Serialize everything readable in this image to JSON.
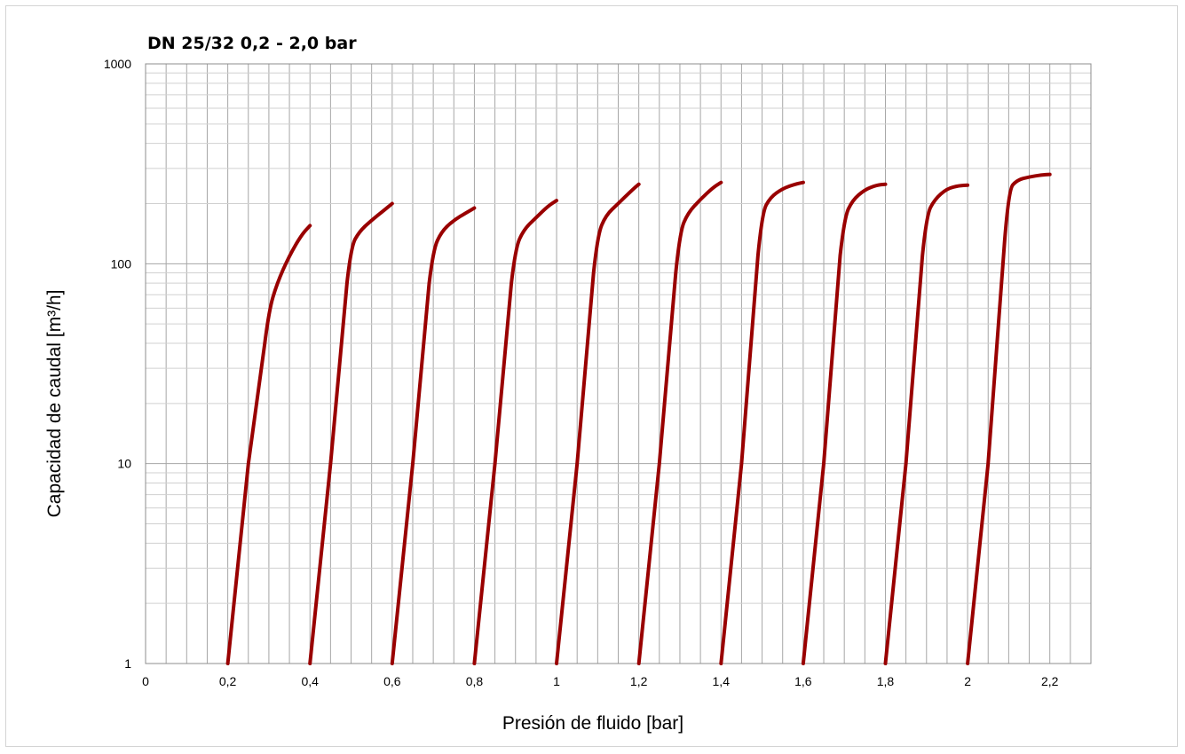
{
  "chart_data": {
    "type": "line",
    "title": "DN 25/32  0,2 - 2,0 bar",
    "xlabel": "Presión de fluido  [bar]",
    "ylabel": "Capacidad de caudal  [m³/h]",
    "xlim": [
      0,
      2.3
    ],
    "ylim": [
      1,
      1000
    ],
    "yscale": "log",
    "grid": true,
    "legend": "none",
    "series_color": "#990000",
    "x_ticks": [
      {
        "value": 0,
        "label": "0"
      },
      {
        "value": 0.2,
        "label": "0,2"
      },
      {
        "value": 0.4,
        "label": "0,4"
      },
      {
        "value": 0.6,
        "label": "0,6"
      },
      {
        "value": 0.8,
        "label": "0,8"
      },
      {
        "value": 1.0,
        "label": "1"
      },
      {
        "value": 1.2,
        "label": "1,2"
      },
      {
        "value": 1.4,
        "label": "1,4"
      },
      {
        "value": 1.6,
        "label": "1,6"
      },
      {
        "value": 1.8,
        "label": "1,8"
      },
      {
        "value": 2.0,
        "label": "2"
      },
      {
        "value": 2.2,
        "label": "2,2"
      }
    ],
    "y_ticks": [
      {
        "value": 1,
        "label": "1"
      },
      {
        "value": 10,
        "label": "10"
      },
      {
        "value": 100,
        "label": "100"
      },
      {
        "value": 1000,
        "label": "1000"
      }
    ],
    "series": [
      {
        "x": [
          0.2,
          0.25,
          0.29,
          0.3,
          0.32,
          0.35,
          0.38,
          0.4
        ],
        "y": [
          1,
          10,
          40,
          58,
          80,
          110,
          140,
          155
        ]
      },
      {
        "x": [
          0.4,
          0.45,
          0.49,
          0.5,
          0.52,
          0.55,
          0.58,
          0.6
        ],
        "y": [
          1,
          10,
          80,
          122,
          145,
          165,
          185,
          200
        ]
      },
      {
        "x": [
          0.6,
          0.65,
          0.69,
          0.7,
          0.72,
          0.75,
          0.78,
          0.8
        ],
        "y": [
          1,
          10,
          80,
          118,
          145,
          165,
          180,
          190
        ]
      },
      {
        "x": [
          0.8,
          0.85,
          0.89,
          0.9,
          0.92,
          0.95,
          0.98,
          1.0
        ],
        "y": [
          1,
          10,
          80,
          120,
          148,
          170,
          195,
          207
        ]
      },
      {
        "x": [
          1.0,
          1.05,
          1.09,
          1.1,
          1.12,
          1.15,
          1.18,
          1.2
        ],
        "y": [
          1,
          10,
          90,
          140,
          175,
          200,
          230,
          250
        ]
      },
      {
        "x": [
          1.2,
          1.25,
          1.29,
          1.3,
          1.32,
          1.35,
          1.38,
          1.4
        ],
        "y": [
          1,
          10,
          90,
          145,
          180,
          210,
          240,
          255
        ]
      },
      {
        "x": [
          1.4,
          1.45,
          1.49,
          1.5,
          1.52,
          1.55,
          1.58,
          1.6
        ],
        "y": [
          1,
          10,
          110,
          180,
          215,
          238,
          250,
          255
        ]
      },
      {
        "x": [
          1.6,
          1.65,
          1.69,
          1.7,
          1.72,
          1.75,
          1.78,
          1.8
        ],
        "y": [
          1,
          10,
          110,
          170,
          208,
          235,
          248,
          250
        ]
      },
      {
        "x": [
          1.8,
          1.85,
          1.89,
          1.9,
          1.92,
          1.95,
          1.98,
          2.0
        ],
        "y": [
          1,
          10,
          110,
          175,
          210,
          238,
          246,
          247
        ]
      },
      {
        "x": [
          2.0,
          2.05,
          2.09,
          2.1,
          2.12,
          2.15,
          2.18,
          2.2
        ],
        "y": [
          1,
          10,
          130,
          235,
          262,
          272,
          278,
          280
        ]
      }
    ]
  }
}
